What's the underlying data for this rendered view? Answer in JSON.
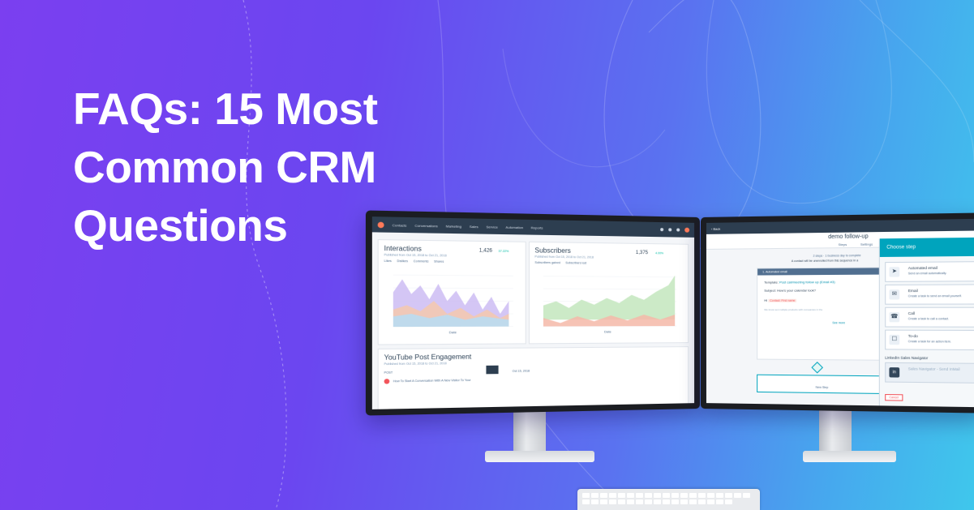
{
  "headline": {
    "lines": [
      "FAQs: 15 Most",
      "Common CRM",
      "Questions"
    ]
  },
  "colors": {
    "bg_start": "#7b3ff0",
    "bg_end": "#3fc7ec",
    "hub_nav": "#2d3e50",
    "accent_orange": "#ff7a59",
    "accent_teal": "#00a4bd"
  },
  "left_screen": {
    "nav_items": [
      "Contacts",
      "Conversations",
      "Marketing",
      "Sales",
      "Service",
      "Automation",
      "Reports"
    ],
    "interactions": {
      "title": "Interactions",
      "subtitle": "Published from Oct 15, 2018 to Oct 21, 2018",
      "stat": "1,426",
      "change": "37.22%",
      "legend": [
        "Likes",
        "Dislikes",
        "Comments",
        "Shares"
      ],
      "axis_label": "Date"
    },
    "subscribers": {
      "title": "Subscribers",
      "subtitle": "Published from Oct 15, 2018 to Oct 21, 2018",
      "stat": "1,375",
      "change": "4.00%",
      "legend": [
        "Subscribers gained",
        "Subscribers lost"
      ],
      "axis_label": "Date"
    },
    "youtube": {
      "title": "YouTube Post Engagement",
      "subtitle": "Published from Oct 15, 2018 to Oct 21, 2018",
      "post_label": "POST",
      "row_text": "How To Start A Conversation With A New Visitor To Your",
      "date": "Oct 15, 2018"
    }
  },
  "right_screen": {
    "back": "Back",
    "sequence_title": "demo follow-up",
    "tabs": [
      "Steps",
      "Settings"
    ],
    "summary": "2 steps · 1 business day to complete",
    "notice": "A contact will be unenrolled from this sequence in a",
    "card_header": "1. Automated email",
    "template_label": "Template:",
    "template_value": "Post call/meeting follow up (Email #3)",
    "subject_label": "Subject:",
    "subject_value": "How's your calendar look?",
    "greeting": "Hi",
    "token": "Contact: First name",
    "body_hint": "We know set multiple products with companies in the",
    "see_more": "See more",
    "new_step": "New Step",
    "drawer": {
      "title": "Choose step",
      "steps": [
        {
          "title": "Automated email",
          "desc": "Send an email automatically.",
          "icon": "paper-plane-icon"
        },
        {
          "title": "Email",
          "desc": "Create a task to send an email yourself.",
          "icon": "envelope-icon"
        },
        {
          "title": "Call",
          "desc": "Create a task to call a contact.",
          "icon": "phone-icon"
        },
        {
          "title": "To-do",
          "desc": "Create a task for an action item.",
          "icon": "todo-icon"
        }
      ],
      "linkedin_title": "LinkedIn Sales Navigator",
      "linkedin_item": "Sales Navigator - Send InMail",
      "cancel": "Cancel"
    }
  }
}
